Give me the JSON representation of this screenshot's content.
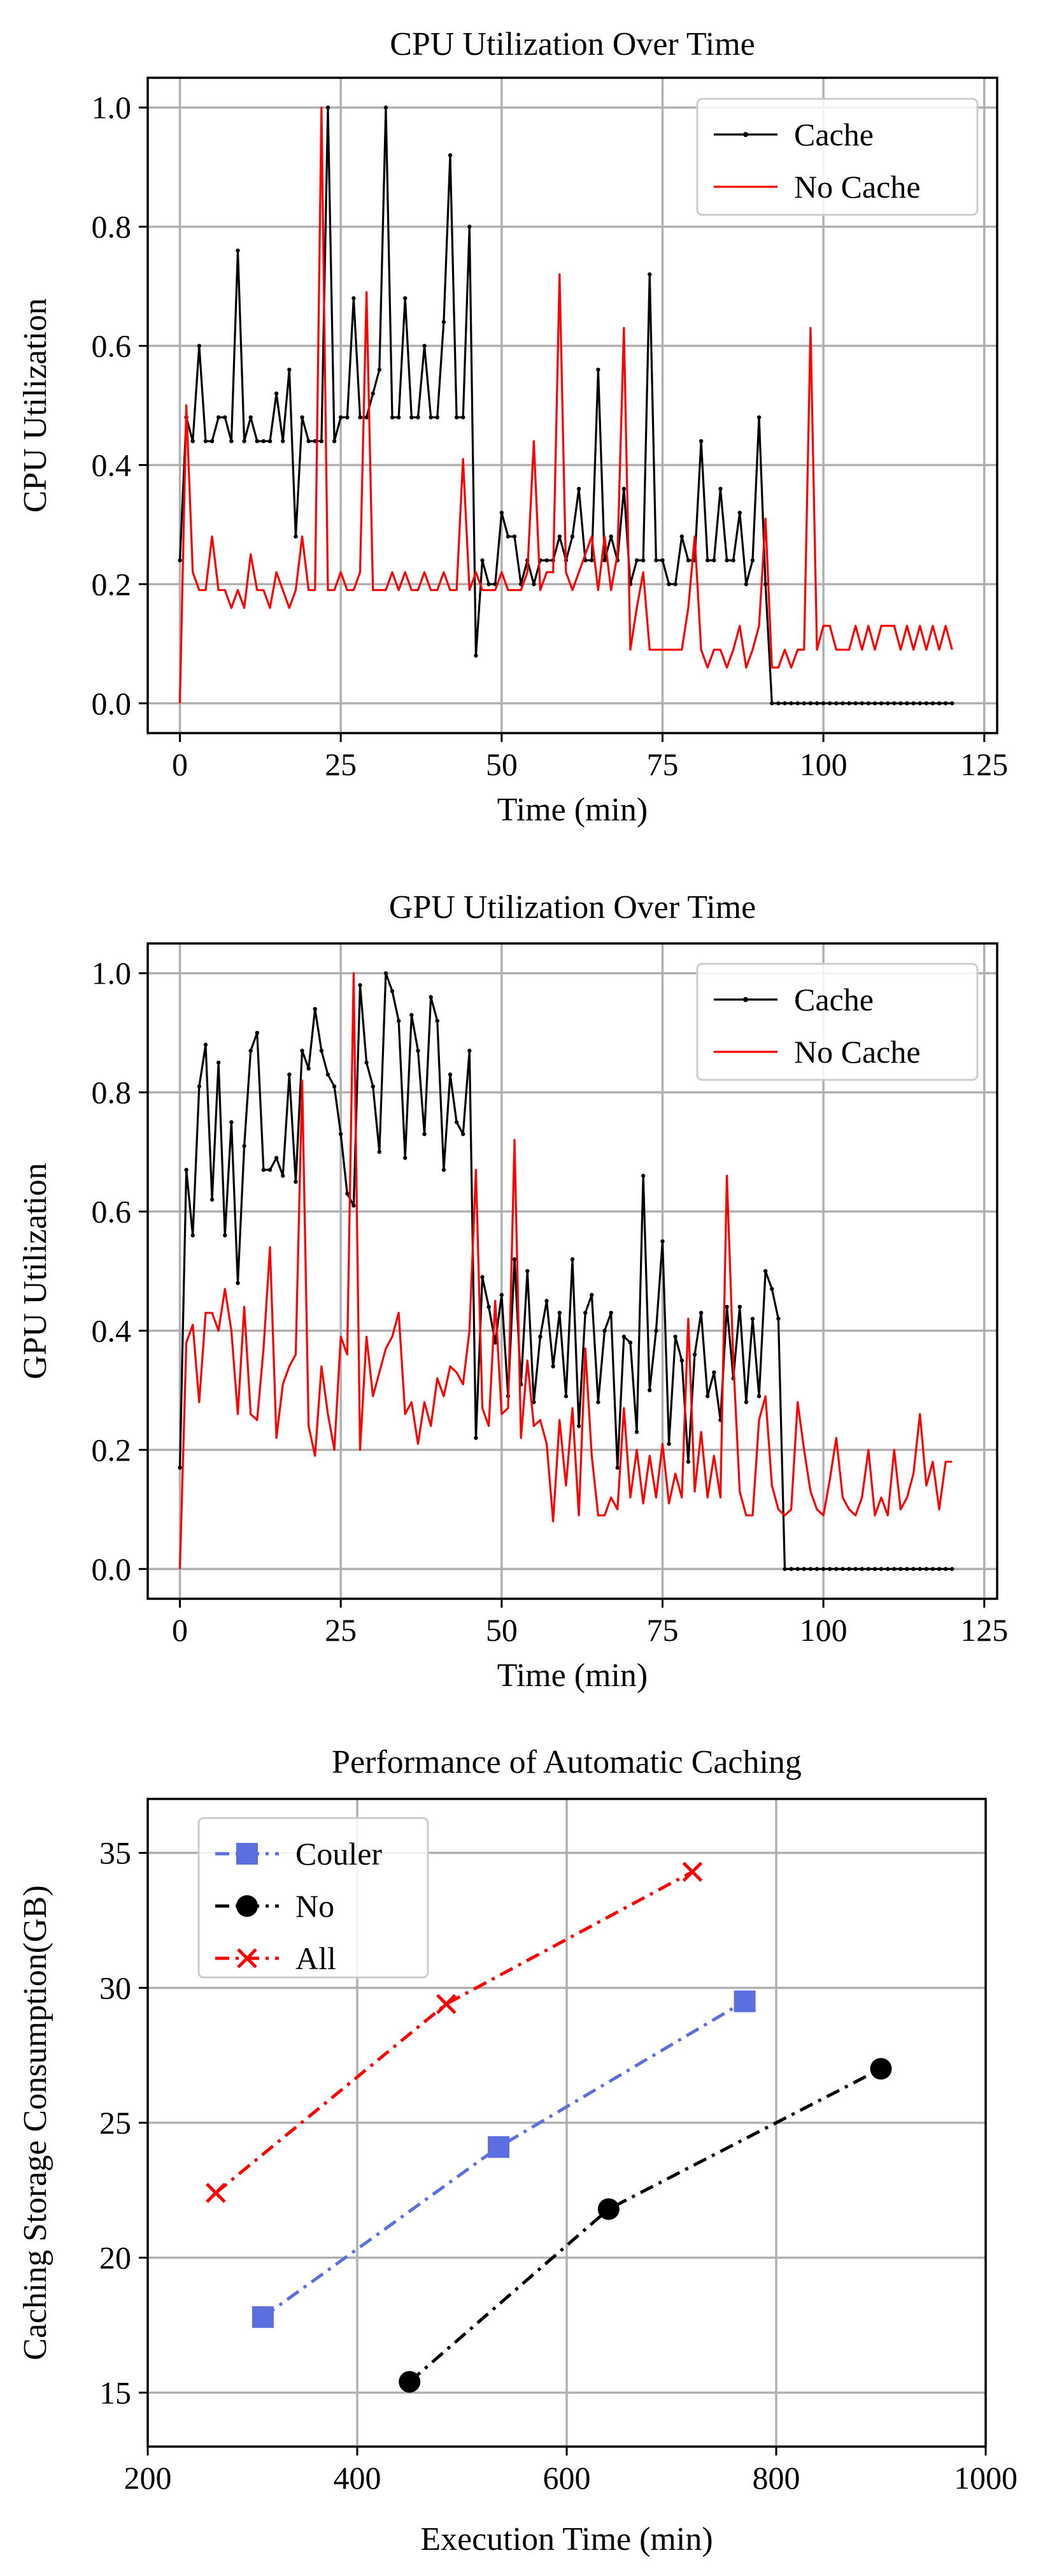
{
  "chart_data": [
    {
      "type": "line",
      "title": "CPU Utilization Over Time",
      "xlabel": "Time (min)",
      "ylabel": "CPU Utilization",
      "xlim": [
        -5,
        127
      ],
      "ylim": [
        -0.05,
        1.05
      ],
      "xticks": [
        "0",
        "25",
        "50",
        "75",
        "100",
        "125"
      ],
      "yticks": [
        "0.0",
        "0.2",
        "0.4",
        "0.6",
        "0.8",
        "1.0"
      ],
      "grid": true,
      "legend_position": "top-right",
      "series": [
        {
          "name": "Cache",
          "color": "#000000",
          "marker": "dot",
          "x": [
            0,
            1,
            2,
            3,
            4,
            5,
            6,
            7,
            8,
            9,
            10,
            11,
            12,
            13,
            14,
            15,
            16,
            17,
            18,
            19,
            20,
            21,
            22,
            23,
            24,
            25,
            26,
            27,
            28,
            29,
            30,
            31,
            32,
            33,
            34,
            35,
            36,
            37,
            38,
            39,
            40,
            41,
            42,
            43,
            44,
            45,
            46,
            47,
            48,
            49,
            50,
            51,
            52,
            53,
            54,
            55,
            56,
            57,
            58,
            59,
            60,
            61,
            62,
            63,
            64,
            65,
            66,
            67,
            68,
            69,
            70,
            71,
            72,
            73,
            74,
            75,
            76,
            77,
            78,
            79,
            80,
            81,
            82,
            83,
            84,
            85,
            86,
            87,
            88,
            89,
            90,
            91,
            92,
            93,
            94,
            95,
            96,
            97,
            98,
            99,
            100,
            101,
            102,
            103,
            104,
            105,
            106,
            107,
            108,
            109,
            110,
            111,
            112,
            113,
            114,
            115,
            116,
            117,
            118,
            119,
            120
          ],
          "values": [
            0.24,
            0.48,
            0.44,
            0.6,
            0.44,
            0.44,
            0.48,
            0.48,
            0.44,
            0.76,
            0.44,
            0.48,
            0.44,
            0.44,
            0.44,
            0.52,
            0.44,
            0.56,
            0.28,
            0.48,
            0.44,
            0.44,
            0.44,
            1.0,
            0.44,
            0.48,
            0.48,
            0.68,
            0.48,
            0.48,
            0.52,
            0.56,
            1.0,
            0.48,
            0.48,
            0.68,
            0.48,
            0.48,
            0.6,
            0.48,
            0.48,
            0.64,
            0.92,
            0.48,
            0.48,
            0.8,
            0.08,
            0.24,
            0.2,
            0.2,
            0.32,
            0.28,
            0.28,
            0.2,
            0.24,
            0.2,
            0.24,
            0.24,
            0.24,
            0.28,
            0.24,
            0.28,
            0.36,
            0.24,
            0.24,
            0.56,
            0.24,
            0.28,
            0.24,
            0.36,
            0.2,
            0.24,
            0.24,
            0.72,
            0.24,
            0.24,
            0.2,
            0.2,
            0.28,
            0.24,
            0.24,
            0.44,
            0.24,
            0.24,
            0.36,
            0.24,
            0.24,
            0.32,
            0.2,
            0.24,
            0.48,
            0.2,
            0.0,
            0.0,
            0.0,
            0.0,
            0.0,
            0.0,
            0.0,
            0.0,
            0.0,
            0.0,
            0.0,
            0.0,
            0.0,
            0.0,
            0.0,
            0.0,
            0.0,
            0.0,
            0.0,
            0.0,
            0.0,
            0.0,
            0.0,
            0.0,
            0.0,
            0.0,
            0.0,
            0.0,
            0.0
          ]
        },
        {
          "name": "No Cache",
          "color": "#ff0000",
          "marker": "none",
          "x": [
            0,
            1,
            2,
            3,
            4,
            5,
            6,
            7,
            8,
            9,
            10,
            11,
            12,
            13,
            14,
            15,
            16,
            17,
            18,
            19,
            20,
            21,
            22,
            23,
            24,
            25,
            26,
            27,
            28,
            29,
            30,
            31,
            32,
            33,
            34,
            35,
            36,
            37,
            38,
            39,
            40,
            41,
            42,
            43,
            44,
            45,
            46,
            47,
            48,
            49,
            50,
            51,
            52,
            53,
            54,
            55,
            56,
            57,
            58,
            59,
            60,
            61,
            62,
            63,
            64,
            65,
            66,
            67,
            68,
            69,
            70,
            71,
            72,
            73,
            74,
            75,
            76,
            77,
            78,
            79,
            80,
            81,
            82,
            83,
            84,
            85,
            86,
            87,
            88,
            89,
            90,
            91,
            92,
            93,
            94,
            95,
            96,
            97,
            98,
            99,
            100,
            101,
            102,
            103,
            104,
            105,
            106,
            107,
            108,
            109,
            110,
            111,
            112,
            113,
            114,
            115,
            116,
            117,
            118,
            119,
            120
          ],
          "values": [
            0.0,
            0.5,
            0.22,
            0.19,
            0.19,
            0.28,
            0.19,
            0.19,
            0.16,
            0.19,
            0.16,
            0.25,
            0.19,
            0.19,
            0.16,
            0.22,
            0.19,
            0.16,
            0.19,
            0.28,
            0.19,
            0.19,
            1.0,
            0.19,
            0.19,
            0.22,
            0.19,
            0.19,
            0.22,
            0.69,
            0.19,
            0.19,
            0.19,
            0.22,
            0.19,
            0.22,
            0.19,
            0.19,
            0.22,
            0.19,
            0.19,
            0.22,
            0.19,
            0.19,
            0.41,
            0.19,
            0.22,
            0.19,
            0.19,
            0.19,
            0.22,
            0.19,
            0.19,
            0.19,
            0.22,
            0.44,
            0.19,
            0.22,
            0.22,
            0.72,
            0.22,
            0.19,
            0.22,
            0.25,
            0.28,
            0.19,
            0.28,
            0.19,
            0.25,
            0.63,
            0.09,
            0.16,
            0.22,
            0.09,
            0.09,
            0.09,
            0.09,
            0.09,
            0.09,
            0.16,
            0.28,
            0.09,
            0.06,
            0.09,
            0.09,
            0.06,
            0.09,
            0.13,
            0.06,
            0.09,
            0.13,
            0.31,
            0.06,
            0.06,
            0.09,
            0.06,
            0.09,
            0.09,
            0.63,
            0.09,
            0.13,
            0.13,
            0.09,
            0.09,
            0.09,
            0.13,
            0.09,
            0.13,
            0.09,
            0.13,
            0.13,
            0.13,
            0.09,
            0.13,
            0.09,
            0.13,
            0.09,
            0.13,
            0.09,
            0.13,
            0.09
          ]
        }
      ]
    },
    {
      "type": "line",
      "title": "GPU Utilization Over Time",
      "xlabel": "Time (min)",
      "ylabel": "GPU Utilization",
      "xlim": [
        -5,
        127
      ],
      "ylim": [
        -0.05,
        1.05
      ],
      "xticks": [
        "0",
        "25",
        "50",
        "75",
        "100",
        "125"
      ],
      "yticks": [
        "0.0",
        "0.2",
        "0.4",
        "0.6",
        "0.8",
        "1.0"
      ],
      "grid": true,
      "legend_position": "top-right",
      "series": [
        {
          "name": "Cache",
          "color": "#000000",
          "marker": "dot",
          "x": [
            0,
            1,
            2,
            3,
            4,
            5,
            6,
            7,
            8,
            9,
            10,
            11,
            12,
            13,
            14,
            15,
            16,
            17,
            18,
            19,
            20,
            21,
            22,
            23,
            24,
            25,
            26,
            27,
            28,
            29,
            30,
            31,
            32,
            33,
            34,
            35,
            36,
            37,
            38,
            39,
            40,
            41,
            42,
            43,
            44,
            45,
            46,
            47,
            48,
            49,
            50,
            51,
            52,
            53,
            54,
            55,
            56,
            57,
            58,
            59,
            60,
            61,
            62,
            63,
            64,
            65,
            66,
            67,
            68,
            69,
            70,
            71,
            72,
            73,
            74,
            75,
            76,
            77,
            78,
            79,
            80,
            81,
            82,
            83,
            84,
            85,
            86,
            87,
            88,
            89,
            90,
            91,
            92,
            93,
            94,
            95,
            96,
            97,
            98,
            99,
            100,
            101,
            102,
            103,
            104,
            105,
            106,
            107,
            108,
            109,
            110,
            111,
            112,
            113,
            114,
            115,
            116,
            117,
            118,
            119,
            120
          ],
          "values": [
            0.17,
            0.67,
            0.56,
            0.81,
            0.88,
            0.62,
            0.85,
            0.56,
            0.75,
            0.48,
            0.71,
            0.87,
            0.9,
            0.67,
            0.67,
            0.69,
            0.66,
            0.83,
            0.65,
            0.87,
            0.84,
            0.94,
            0.87,
            0.83,
            0.81,
            0.73,
            0.63,
            0.61,
            0.98,
            0.85,
            0.81,
            0.7,
            1.0,
            0.97,
            0.92,
            0.69,
            0.93,
            0.87,
            0.73,
            0.96,
            0.92,
            0.67,
            0.83,
            0.75,
            0.73,
            0.87,
            0.22,
            0.49,
            0.44,
            0.38,
            0.46,
            0.29,
            0.52,
            0.31,
            0.5,
            0.28,
            0.39,
            0.45,
            0.34,
            0.43,
            0.29,
            0.52,
            0.24,
            0.43,
            0.46,
            0.28,
            0.4,
            0.43,
            0.17,
            0.39,
            0.38,
            0.23,
            0.66,
            0.3,
            0.4,
            0.55,
            0.21,
            0.39,
            0.35,
            0.18,
            0.36,
            0.43,
            0.29,
            0.33,
            0.25,
            0.44,
            0.32,
            0.44,
            0.28,
            0.42,
            0.29,
            0.5,
            0.47,
            0.42,
            0.0,
            0.0,
            0.0,
            0.0,
            0.0,
            0.0,
            0.0,
            0.0,
            0.0,
            0.0,
            0.0,
            0.0,
            0.0,
            0.0,
            0.0,
            0.0,
            0.0,
            0.0,
            0.0,
            0.0,
            0.0,
            0.0,
            0.0,
            0.0,
            0.0,
            0.0,
            0.0
          ]
        },
        {
          "name": "No Cache",
          "color": "#ff0000",
          "marker": "none",
          "x": [
            0,
            1,
            2,
            3,
            4,
            5,
            6,
            7,
            8,
            9,
            10,
            11,
            12,
            13,
            14,
            15,
            16,
            17,
            18,
            19,
            20,
            21,
            22,
            23,
            24,
            25,
            26,
            27,
            28,
            29,
            30,
            31,
            32,
            33,
            34,
            35,
            36,
            37,
            38,
            39,
            40,
            41,
            42,
            43,
            44,
            45,
            46,
            47,
            48,
            49,
            50,
            51,
            52,
            53,
            54,
            55,
            56,
            57,
            58,
            59,
            60,
            61,
            62,
            63,
            64,
            65,
            66,
            67,
            68,
            69,
            70,
            71,
            72,
            73,
            74,
            75,
            76,
            77,
            78,
            79,
            80,
            81,
            82,
            83,
            84,
            85,
            86,
            87,
            88,
            89,
            90,
            91,
            92,
            93,
            94,
            95,
            96,
            97,
            98,
            99,
            100,
            101,
            102,
            103,
            104,
            105,
            106,
            107,
            108,
            109,
            110,
            111,
            112,
            113,
            114,
            115,
            116,
            117,
            118,
            119,
            120
          ],
          "values": [
            0.0,
            0.38,
            0.41,
            0.28,
            0.43,
            0.43,
            0.4,
            0.47,
            0.4,
            0.26,
            0.44,
            0.26,
            0.25,
            0.37,
            0.54,
            0.22,
            0.31,
            0.34,
            0.36,
            0.82,
            0.24,
            0.19,
            0.34,
            0.26,
            0.2,
            0.39,
            0.36,
            1.0,
            0.2,
            0.39,
            0.29,
            0.33,
            0.37,
            0.39,
            0.43,
            0.26,
            0.28,
            0.21,
            0.28,
            0.24,
            0.32,
            0.29,
            0.34,
            0.33,
            0.31,
            0.4,
            0.67,
            0.27,
            0.24,
            0.45,
            0.26,
            0.27,
            0.72,
            0.22,
            0.35,
            0.24,
            0.25,
            0.21,
            0.08,
            0.25,
            0.14,
            0.27,
            0.09,
            0.37,
            0.19,
            0.09,
            0.09,
            0.12,
            0.1,
            0.27,
            0.12,
            0.2,
            0.11,
            0.19,
            0.12,
            0.21,
            0.11,
            0.16,
            0.12,
            0.42,
            0.13,
            0.23,
            0.12,
            0.19,
            0.12,
            0.66,
            0.35,
            0.13,
            0.09,
            0.09,
            0.25,
            0.29,
            0.14,
            0.1,
            0.09,
            0.1,
            0.28,
            0.2,
            0.13,
            0.1,
            0.09,
            0.15,
            0.22,
            0.12,
            0.1,
            0.09,
            0.12,
            0.2,
            0.09,
            0.12,
            0.09,
            0.2,
            0.1,
            0.12,
            0.16,
            0.26,
            0.14,
            0.18,
            0.1,
            0.18,
            0.18
          ]
        }
      ]
    },
    {
      "type": "line",
      "title": "Performance of Automatic Caching",
      "xlabel": "Execution Time (min)",
      "ylabel": "Caching Storage Consumption(GB)",
      "xlim": [
        200,
        1000
      ],
      "ylim": [
        13,
        37
      ],
      "xticks": [
        "200",
        "400",
        "600",
        "800",
        "1000"
      ],
      "yticks": [
        "15",
        "20",
        "25",
        "30",
        "35"
      ],
      "grid": true,
      "legend_position": "top-left",
      "series": [
        {
          "name": "Couler",
          "color": "#5b6fe0",
          "marker": "square",
          "x": [
            310,
            535,
            770
          ],
          "values": [
            17.8,
            24.1,
            29.5
          ]
        },
        {
          "name": "No",
          "color": "#000000",
          "marker": "circle",
          "x": [
            450,
            640,
            900
          ],
          "values": [
            15.4,
            21.8,
            27.0
          ]
        },
        {
          "name": "All",
          "color": "#ff0000",
          "marker": "x",
          "x": [
            265,
            485,
            720
          ],
          "values": [
            22.4,
            29.4,
            34.3
          ]
        }
      ]
    }
  ]
}
